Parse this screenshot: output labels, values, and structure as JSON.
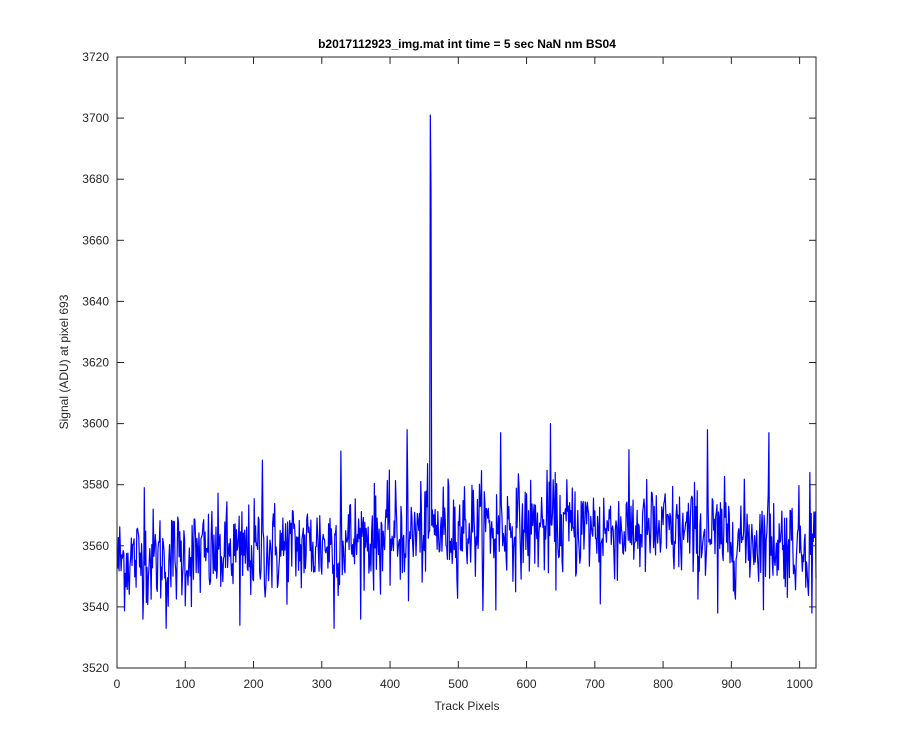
{
  "chart_data": {
    "type": "line",
    "title": "b2017112923_img.mat int time = 5 sec  NaN nm BS04",
    "xlabel": "Track Pixels",
    "ylabel": "Signal (ADU) at pixel 693",
    "xlim": [
      0,
      1024
    ],
    "ylim": [
      3520,
      3720
    ],
    "xticks": [
      0,
      100,
      200,
      300,
      400,
      500,
      600,
      700,
      800,
      900,
      1000
    ],
    "yticks": [
      3520,
      3540,
      3560,
      3580,
      3600,
      3620,
      3640,
      3660,
      3680,
      3700,
      3720
    ],
    "grid": false,
    "box": true,
    "line_color": "#0000ff",
    "series": [
      {
        "name": "",
        "x_start": 1,
        "x_end": 1024,
        "baseline_trend": [
          [
            0,
            3555
          ],
          [
            200,
            3558
          ],
          [
            400,
            3563
          ],
          [
            500,
            3566
          ],
          [
            700,
            3566
          ],
          [
            900,
            3563
          ],
          [
            1024,
            3560
          ]
        ],
        "noise_std": 8,
        "spikes": [
          {
            "x": 40,
            "y": 3579
          },
          {
            "x": 72,
            "y": 3533
          },
          {
            "x": 180,
            "y": 3534
          },
          {
            "x": 213,
            "y": 3588
          },
          {
            "x": 318,
            "y": 3533
          },
          {
            "x": 328,
            "y": 3591
          },
          {
            "x": 425,
            "y": 3598
          },
          {
            "x": 427,
            "y": 3542
          },
          {
            "x": 459,
            "y": 3701
          },
          {
            "x": 460,
            "y": 3677
          },
          {
            "x": 555,
            "y": 3539
          },
          {
            "x": 562,
            "y": 3597
          },
          {
            "x": 635,
            "y": 3600
          },
          {
            "x": 708,
            "y": 3541
          },
          {
            "x": 865,
            "y": 3598
          },
          {
            "x": 880,
            "y": 3538
          },
          {
            "x": 955,
            "y": 3597
          },
          {
            "x": 1015,
            "y": 3584
          },
          {
            "x": 1018,
            "y": 3538
          }
        ]
      }
    ]
  }
}
